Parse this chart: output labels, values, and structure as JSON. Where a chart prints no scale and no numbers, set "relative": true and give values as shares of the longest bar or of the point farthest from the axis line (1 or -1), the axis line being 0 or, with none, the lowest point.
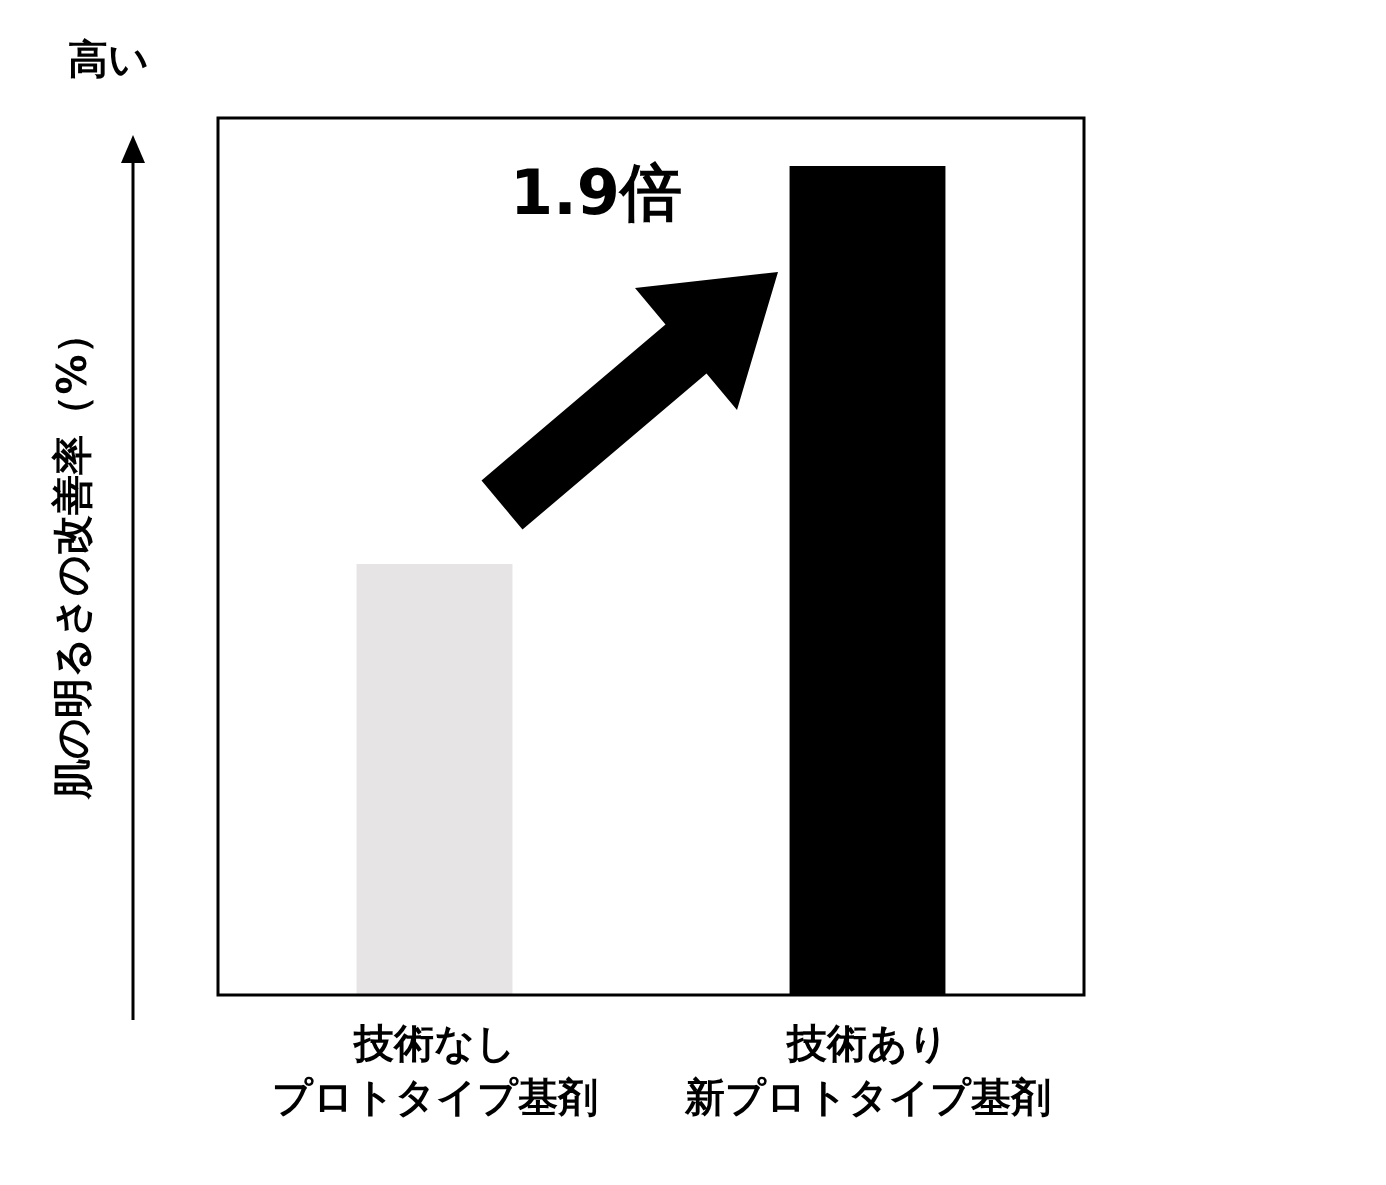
{
  "chart_data": {
    "type": "bar",
    "relative": true,
    "ylabel": "肌の明るさの改善率（%）",
    "categories": [
      "技術なしプロトタイプ基剤",
      "技術あり新プロトタイプ基剤"
    ],
    "values": [
      0.52,
      1
    ],
    "colors": [
      "#e6e4e5",
      "#000000"
    ],
    "annotations": [
      "高い",
      "1.9倍"
    ],
    "grid": false,
    "legend": false
  }
}
